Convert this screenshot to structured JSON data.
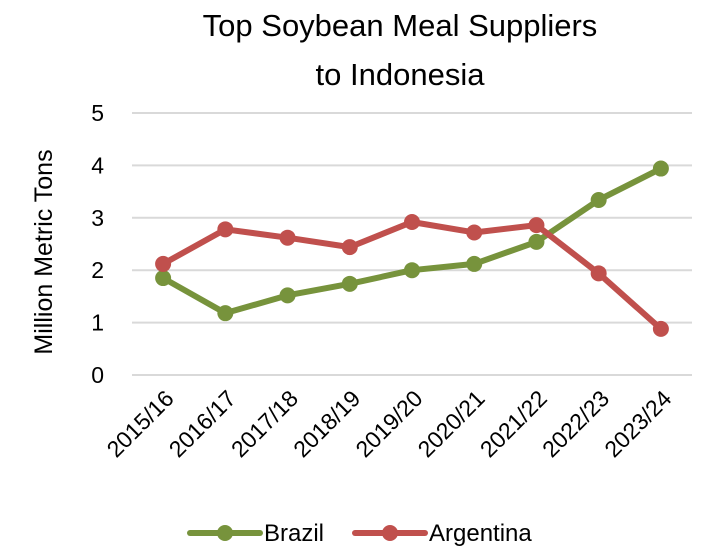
{
  "chart_data": {
    "type": "line",
    "title_lines": [
      "Top Soybean Meal Suppliers",
      "to Indonesia"
    ],
    "xlabel": "",
    "ylabel": "Million Metric Tons",
    "ylim": [
      0,
      5
    ],
    "y_ticks": [
      "0",
      "1",
      "2",
      "3",
      "4",
      "5"
    ],
    "categories": [
      "2015/16",
      "2016/17",
      "2017/18",
      "2018/19",
      "2019/20",
      "2020/21",
      "2021/22",
      "2022/23",
      "2023/24"
    ],
    "series": [
      {
        "name": "Brazil",
        "color": "#77933c",
        "values": [
          1.85,
          1.18,
          1.52,
          1.74,
          2.0,
          2.12,
          2.54,
          3.34,
          3.94
        ]
      },
      {
        "name": "Argentina",
        "color": "#c0504d",
        "values": [
          2.12,
          2.78,
          2.62,
          2.44,
          2.92,
          2.72,
          2.86,
          1.94,
          0.88
        ]
      }
    ],
    "grid": true,
    "legend_position": "bottom"
  }
}
